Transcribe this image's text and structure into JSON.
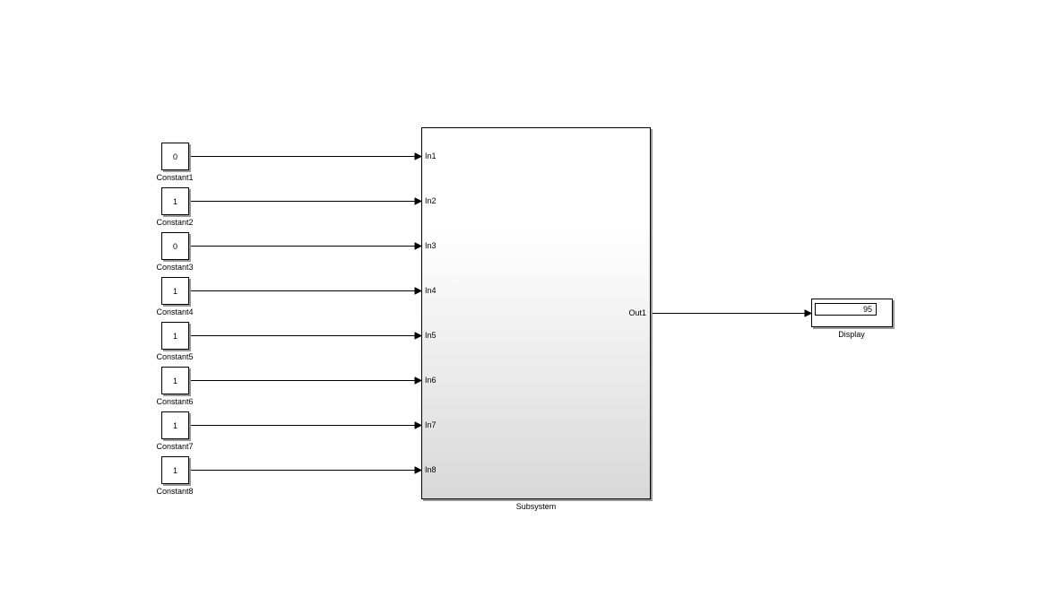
{
  "constants": [
    {
      "name": "Constant1",
      "value": "0"
    },
    {
      "name": "Constant2",
      "value": "1"
    },
    {
      "name": "Constant3",
      "value": "0"
    },
    {
      "name": "Constant4",
      "value": "1"
    },
    {
      "name": "Constant5",
      "value": "1"
    },
    {
      "name": "Constant6",
      "value": "1"
    },
    {
      "name": "Constant7",
      "value": "1"
    },
    {
      "name": "Constant8",
      "value": "1"
    }
  ],
  "subsystem": {
    "name": "Subsystem",
    "inputs": [
      "In1",
      "In2",
      "In3",
      "In4",
      "In5",
      "In6",
      "In7",
      "In8"
    ],
    "output": "Out1"
  },
  "display": {
    "name": "Display",
    "value": "95"
  }
}
